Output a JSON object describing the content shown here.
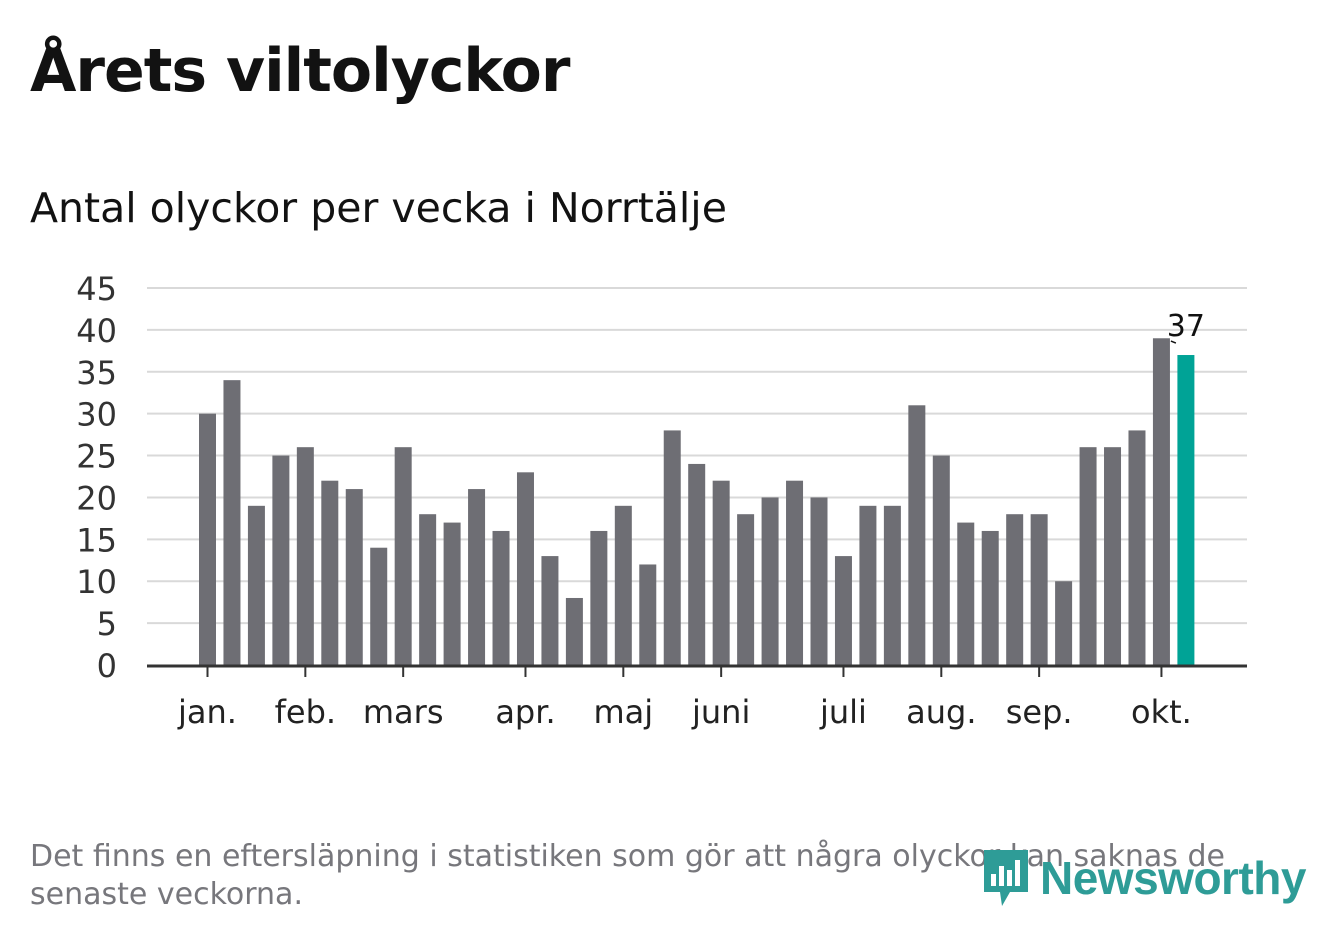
{
  "header": {
    "title": "Årets viltolyckor",
    "subtitle": "Antal olyckor per vecka i Norrtälje"
  },
  "footer": {
    "note": "Det finns en eftersläpning i statistiken som gör att några olyckor kan saknas de senaste veckorna.",
    "logo_text": "Newsworthy"
  },
  "colors": {
    "bar": "#6e6e74",
    "highlight": "#00a396",
    "grid": "#d9d9d9",
    "axis": "#333333",
    "brand": "#2e9c97"
  },
  "chart_data": {
    "type": "bar",
    "values": [
      30,
      34,
      19,
      25,
      26,
      22,
      21,
      14,
      26,
      18,
      17,
      21,
      16,
      23,
      13,
      8,
      16,
      19,
      12,
      28,
      24,
      22,
      18,
      20,
      22,
      20,
      13,
      19,
      19,
      31,
      25,
      17,
      16,
      18,
      18,
      10,
      26,
      26,
      28,
      39,
      37
    ],
    "highlight_last": true,
    "data_label": "37",
    "ylim": [
      0,
      45
    ],
    "yticks": [
      "0",
      "5",
      "10",
      "15",
      "20",
      "25",
      "30",
      "35",
      "40",
      "45"
    ],
    "month_labels": [
      {
        "label": "jan.",
        "bar_index": 0
      },
      {
        "label": "feb.",
        "bar_index": 4
      },
      {
        "label": "mars",
        "bar_index": 8
      },
      {
        "label": "apr.",
        "bar_index": 13
      },
      {
        "label": "maj",
        "bar_index": 17
      },
      {
        "label": "juni",
        "bar_index": 21
      },
      {
        "label": "juli",
        "bar_index": 26
      },
      {
        "label": "aug.",
        "bar_index": 30
      },
      {
        "label": "sep.",
        "bar_index": 34
      },
      {
        "label": "okt.",
        "bar_index": 39
      }
    ],
    "grid": true,
    "legend": "none"
  }
}
